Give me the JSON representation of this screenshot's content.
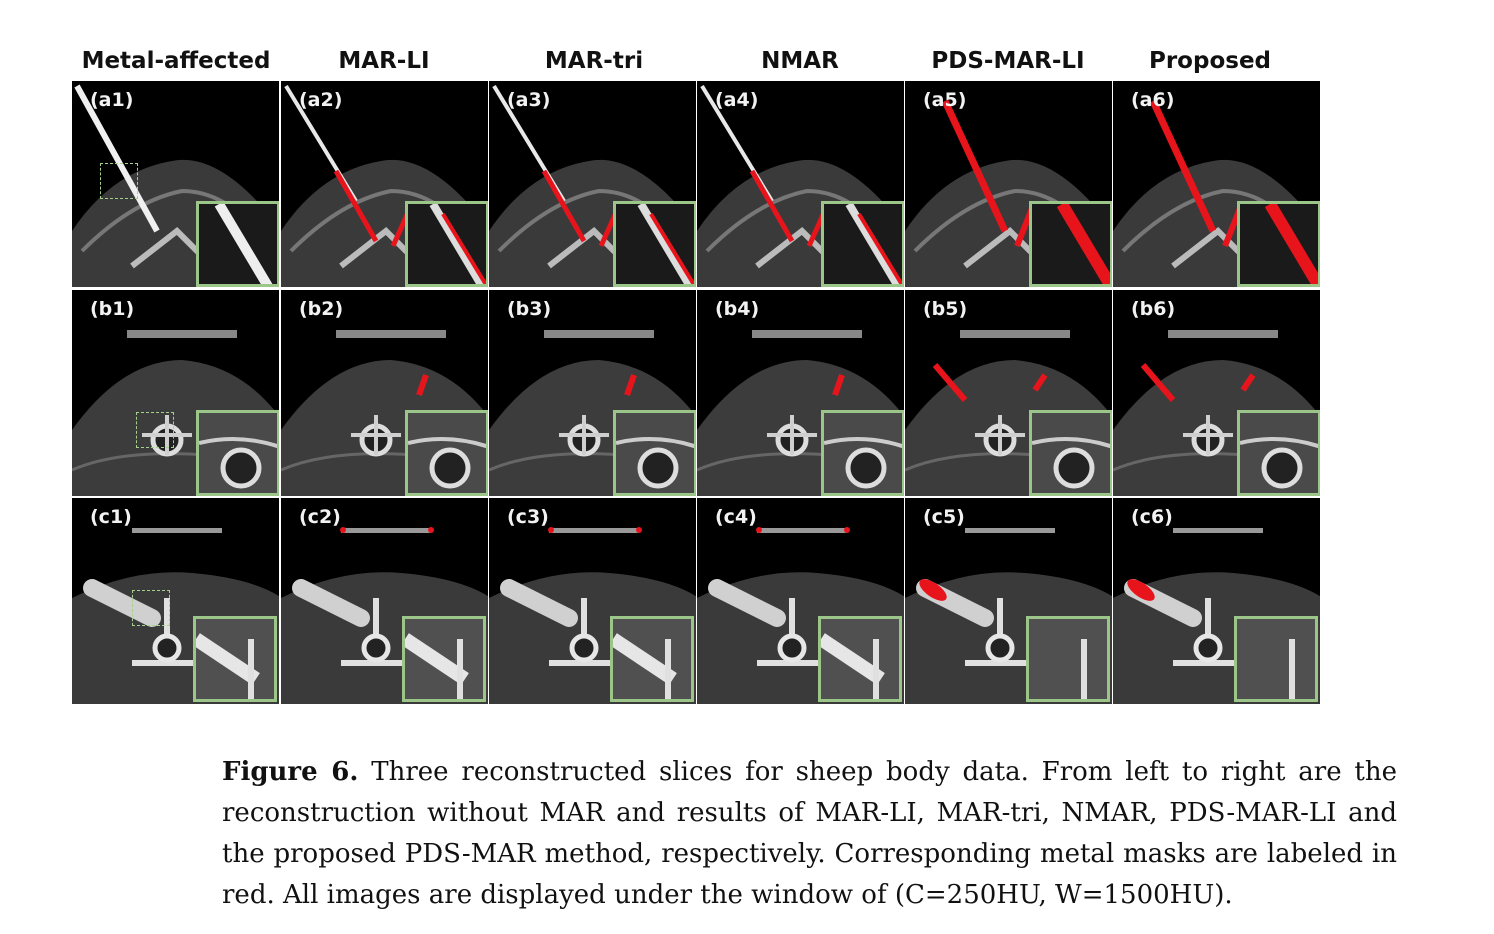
{
  "figure": {
    "columns": [
      "Metal-affected",
      "MAR-LI",
      "MAR-tri",
      "NMAR",
      "PDS-MAR-LI",
      "Proposed"
    ],
    "rows": [
      [
        "(a1)",
        "(a2)",
        "(a3)",
        "(a4)",
        "(a5)",
        "(a6)"
      ],
      [
        "(b1)",
        "(b2)",
        "(b3)",
        "(b4)",
        "(b5)",
        "(b6)"
      ],
      [
        "(c1)",
        "(c2)",
        "(c3)",
        "(c4)",
        "(c5)",
        "(c6)"
      ]
    ],
    "colors": {
      "metal_mask": "#e8141c",
      "inset_border": "#9cc58a",
      "background": "#000000"
    }
  },
  "caption": {
    "label": "Figure 6.",
    "text": "Three reconstructed slices for sheep body data. From left to right are the reconstruction without MAR and results of MAR-LI, MAR-tri, NMAR, PDS-MAR-LI and the proposed PDS-MAR method, respectively. Corresponding metal masks are labeled in red. All images are displayed under the window of (C=250HU, W=1500HU)."
  }
}
